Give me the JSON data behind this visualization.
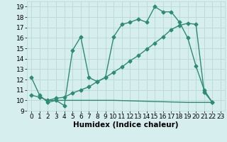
{
  "line1_x": [
    0,
    1,
    2,
    3,
    4,
    5,
    6,
    7,
    8,
    9,
    10,
    11,
    12,
    13,
    14,
    15,
    16,
    17,
    18,
    19,
    20,
    21,
    22
  ],
  "line1_y": [
    12.2,
    10.5,
    9.8,
    10.0,
    9.5,
    14.8,
    16.1,
    12.2,
    11.8,
    12.2,
    16.1,
    17.3,
    17.5,
    17.8,
    17.5,
    19.0,
    18.5,
    18.5,
    17.5,
    16.0,
    13.3,
    11.0,
    9.8
  ],
  "line2_x": [
    0,
    1,
    2,
    3,
    4,
    5,
    6,
    7,
    8,
    9,
    10,
    11,
    12,
    13,
    14,
    15,
    16,
    17,
    18,
    19,
    20,
    21,
    22
  ],
  "line2_y": [
    10.5,
    10.3,
    10.0,
    10.2,
    10.3,
    10.7,
    11.0,
    11.3,
    11.8,
    12.2,
    12.7,
    13.2,
    13.8,
    14.3,
    14.9,
    15.5,
    16.1,
    16.8,
    17.2,
    17.4,
    17.3,
    10.8,
    9.8
  ],
  "line3_x": [
    2,
    10,
    19,
    22
  ],
  "line3_y": [
    10.0,
    10.0,
    9.8,
    9.8
  ],
  "color": "#2e8b74",
  "bg_color": "#d6eeee",
  "grid_color": "#b8d8d8",
  "xlabel": "Humidex (Indice chaleur)",
  "xlim": [
    -0.5,
    23.5
  ],
  "ylim": [
    9,
    19.5
  ],
  "yticks": [
    9,
    10,
    11,
    12,
    13,
    14,
    15,
    16,
    17,
    18,
    19
  ],
  "xticks": [
    0,
    1,
    2,
    3,
    4,
    5,
    6,
    7,
    8,
    9,
    10,
    11,
    12,
    13,
    14,
    15,
    16,
    17,
    18,
    19,
    20,
    21,
    22,
    23
  ],
  "marker": "D",
  "markersize": 2.5,
  "linewidth": 1.0,
  "xlabel_fontsize": 7.5,
  "tick_fontsize": 6.5
}
